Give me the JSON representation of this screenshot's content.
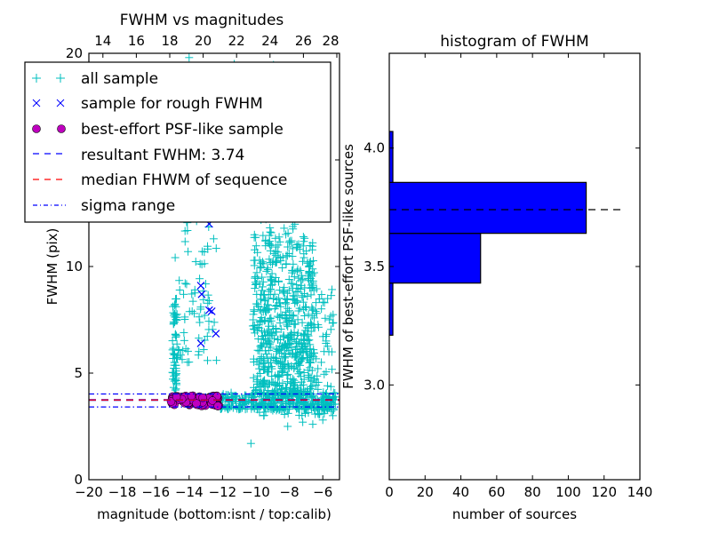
{
  "chart_data": [
    {
      "type": "scatter",
      "title": "FWHM vs magnitudes",
      "xlabel": "magnitude (bottom:isnt / top:calib)",
      "ylabel": "FWHM (pix)",
      "xlim": [
        -20,
        -5
      ],
      "ylim": [
        0,
        20
      ],
      "xticks": [
        -20,
        -18,
        -16,
        -14,
        -12,
        -10,
        -8,
        -6
      ],
      "xtick_labels": [
        "−20",
        "−18",
        "−16",
        "−14",
        "−12",
        "−10",
        "−8",
        "−6"
      ],
      "yticks": [
        0,
        5,
        10,
        15,
        20
      ],
      "ytick_labels": [
        "0",
        "5",
        "10",
        "15",
        "20"
      ],
      "top_axis": {
        "offset": 33.16,
        "ticks": [
          14,
          16,
          18,
          20,
          22,
          24,
          26,
          28
        ],
        "tick_labels": [
          "14",
          "16",
          "18",
          "20",
          "22",
          "24",
          "26",
          "28"
        ]
      },
      "grid": false,
      "legend_position": "upper-left",
      "legend": [
        {
          "label": "all sample",
          "marker": "plus",
          "color": "#00bfbf"
        },
        {
          "label": "sample for rough FWHM",
          "marker": "x",
          "color": "#0000ff"
        },
        {
          "label": "best-effort PSF-like sample",
          "marker": "circle",
          "color": "#bf00bf"
        },
        {
          "label": "resultant FWHM: 3.74",
          "marker": "dashed",
          "color": "#0000ff"
        },
        {
          "label": "median FHWM of sequence",
          "marker": "dashed",
          "color": "#ff0000"
        },
        {
          "label": "sigma range",
          "marker": "dashdot",
          "color": "#0000ff"
        }
      ],
      "series": [
        {
          "name": "all sample",
          "clusters": [
            {
              "x_range": [
                -15.0,
                -14.7
              ],
              "y_range": [
                4.0,
                8.5
              ],
              "count": 60
            },
            {
              "x_range": [
                -14.9,
                -12.3
              ],
              "y_range": [
                5.5,
                14.0
              ],
              "count": 90
            },
            {
              "x_range": [
                -12.2,
                -5.2
              ],
              "y_range": [
                3.3,
                4.1
              ],
              "count": 300
            },
            {
              "x_range": [
                -10.2,
                -6.5
              ],
              "y_range": [
                4.0,
                11.5
              ],
              "count": 500
            },
            {
              "x_range": [
                -9.8,
                -5.3
              ],
              "y_range": [
                3.0,
                9.0
              ],
              "count": 220
            },
            {
              "x_range": [
                -10.5,
                -7.5
              ],
              "y_range": [
                11.0,
                19.5
              ],
              "count": 90
            }
          ],
          "points": [
            [
              -10.3,
              1.7
            ],
            [
              -8.1,
              2.5
            ],
            [
              -7.2,
              2.7
            ],
            [
              -6.6,
              2.6
            ],
            [
              -6.0,
              2.8
            ],
            [
              -14.0,
              19.8
            ],
            [
              -11.3,
              19.5
            ],
            [
              -10.8,
              19.3
            ],
            [
              -10.6,
              19.2
            ],
            [
              -8.6,
              8.3
            ],
            [
              -5.9,
              8.3
            ],
            [
              -5.6,
              7.5
            ]
          ]
        },
        {
          "name": "sample for rough FWHM",
          "points": [
            [
              -12.8,
              12.0
            ],
            [
              -13.3,
              9.1
            ],
            [
              -13.25,
              8.7
            ],
            [
              -12.8,
              7.95
            ],
            [
              -12.65,
              7.9
            ],
            [
              -12.4,
              6.85
            ],
            [
              -13.3,
              6.4
            ]
          ]
        },
        {
          "name": "best-effort PSF-like sample",
          "x_range": [
            -15.1,
            -12.2
          ],
          "y_range": [
            3.45,
            3.95
          ],
          "count": 110
        },
        {
          "name": "resultant FWHM: 3.74",
          "type": "hline",
          "y": 3.74
        },
        {
          "name": "median FHWM of sequence",
          "type": "hline",
          "y": 3.74
        },
        {
          "name": "sigma range",
          "type": "hline",
          "y_values": [
            3.41,
            4.02
          ]
        }
      ]
    },
    {
      "type": "bar",
      "orientation": "horizontal",
      "title": "histogram of FWHM",
      "xlabel": "number of sources",
      "ylabel": "FWHM of best-effort PSF-like sources",
      "xlim": [
        0,
        140
      ],
      "ylim": [
        2.6,
        4.4
      ],
      "xticks": [
        0,
        20,
        40,
        60,
        80,
        100,
        120,
        140
      ],
      "xtick_labels": [
        "0",
        "20",
        "40",
        "60",
        "80",
        "100",
        "120",
        "140"
      ],
      "yticks": [
        3.0,
        3.5,
        4.0
      ],
      "ytick_labels": [
        "3.0",
        "3.5",
        "4.0"
      ],
      "grid": false,
      "bins": [
        {
          "low": 3.21,
          "high": 3.43,
          "count": 2
        },
        {
          "low": 3.43,
          "high": 3.64,
          "count": 51
        },
        {
          "low": 3.64,
          "high": 3.855,
          "count": 110
        },
        {
          "low": 3.855,
          "high": 4.07,
          "count": 2
        }
      ],
      "bar_color": "#0000ff",
      "reference_line": {
        "y": 3.74,
        "x_extent": 130,
        "style": "dashed",
        "color": "#000000"
      }
    }
  ]
}
